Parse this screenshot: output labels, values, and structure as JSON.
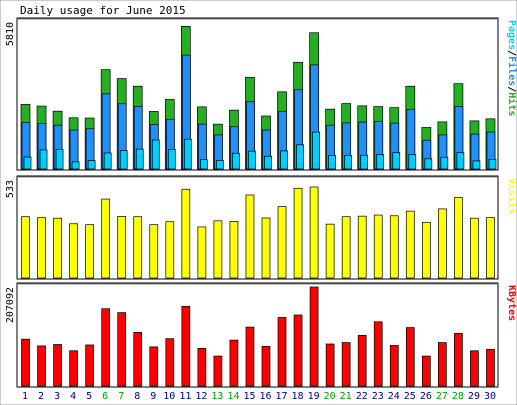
{
  "title": "Daily usage for June 2015",
  "colors": {
    "hits": "#22b022",
    "files": "#1e90ff",
    "pages": "#00d0ff",
    "visits": "#ffff00",
    "kbytes": "#ff0000",
    "frame": "#000000",
    "weekday_label": "#000080",
    "weekend_label": "#00a000"
  },
  "chart_data": [
    {
      "type": "bar",
      "name": "hits-files-pages",
      "label_parts": [
        "Pages",
        "/",
        "Files",
        "/",
        "Hits"
      ],
      "label_colors": [
        "#00d0ff",
        "#000000",
        "#1e90ff",
        "#000000",
        "#22b022"
      ],
      "ymax_label": "5810",
      "ylim": [
        0,
        5810
      ],
      "categories": [
        "1",
        "2",
        "3",
        "4",
        "5",
        "6",
        "7",
        "8",
        "9",
        "10",
        "11",
        "12",
        "13",
        "14",
        "15",
        "16",
        "17",
        "18",
        "19",
        "20",
        "21",
        "22",
        "23",
        "24",
        "25",
        "26",
        "27",
        "28",
        "29",
        "30"
      ],
      "weekend_days": [
        "6",
        "7",
        "13",
        "14",
        "20",
        "21",
        "27",
        "28"
      ],
      "series": [
        {
          "name": "Hits",
          "values": [
            2540,
            2470,
            2270,
            2010,
            2000,
            3900,
            3550,
            3250,
            2260,
            2730,
            5600,
            2440,
            1760,
            2310,
            3600,
            2080,
            3030,
            4190,
            5350,
            2350,
            2570,
            2480,
            2450,
            2410,
            3250,
            1630,
            1850,
            3350,
            1890,
            1970
          ]
        },
        {
          "name": "Files",
          "values": [
            1820,
            1780,
            1720,
            1530,
            1580,
            2950,
            2560,
            2450,
            1740,
            1950,
            4470,
            1760,
            1340,
            1660,
            2640,
            1530,
            2260,
            3110,
            4090,
            1720,
            1810,
            1840,
            1860,
            1800,
            2330,
            1130,
            1340,
            2450,
            1370,
            1450
          ]
        },
        {
          "name": "Pages",
          "values": [
            470,
            750,
            770,
            280,
            330,
            630,
            720,
            780,
            1140,
            770,
            1170,
            370,
            340,
            620,
            700,
            500,
            710,
            950,
            1450,
            530,
            530,
            540,
            560,
            640,
            570,
            400,
            460,
            640,
            320,
            380
          ]
        }
      ]
    },
    {
      "type": "bar",
      "name": "visits",
      "label_parts": [
        "Visits"
      ],
      "label_colors": [
        "#ffff00"
      ],
      "ymax_label": "533",
      "ylim": [
        0,
        533
      ],
      "series": [
        {
          "name": "Visits",
          "values": [
            330,
            325,
            322,
            292,
            287,
            425,
            332,
            330,
            287,
            303,
            478,
            275,
            308,
            305,
            447,
            323,
            385,
            483,
            490,
            290,
            330,
            333,
            339,
            335,
            360,
            300,
            372,
            433,
            322,
            325
          ]
        }
      ]
    },
    {
      "type": "bar",
      "name": "kbytes",
      "label_parts": [
        "KBytes"
      ],
      "label_colors": [
        "#ff0000"
      ],
      "ymax_label": "207092",
      "ylim": [
        0,
        207092
      ],
      "series": [
        {
          "name": "KBytes",
          "values": [
            97000,
            83000,
            86000,
            73000,
            85000,
            160000,
            152000,
            111000,
            81000,
            98000,
            165000,
            78000,
            62000,
            95000,
            122000,
            82000,
            142000,
            147000,
            205000,
            87000,
            90000,
            105000,
            133000,
            84000,
            121000,
            62000,
            90000,
            109000,
            73000,
            76000
          ]
        }
      ]
    }
  ]
}
